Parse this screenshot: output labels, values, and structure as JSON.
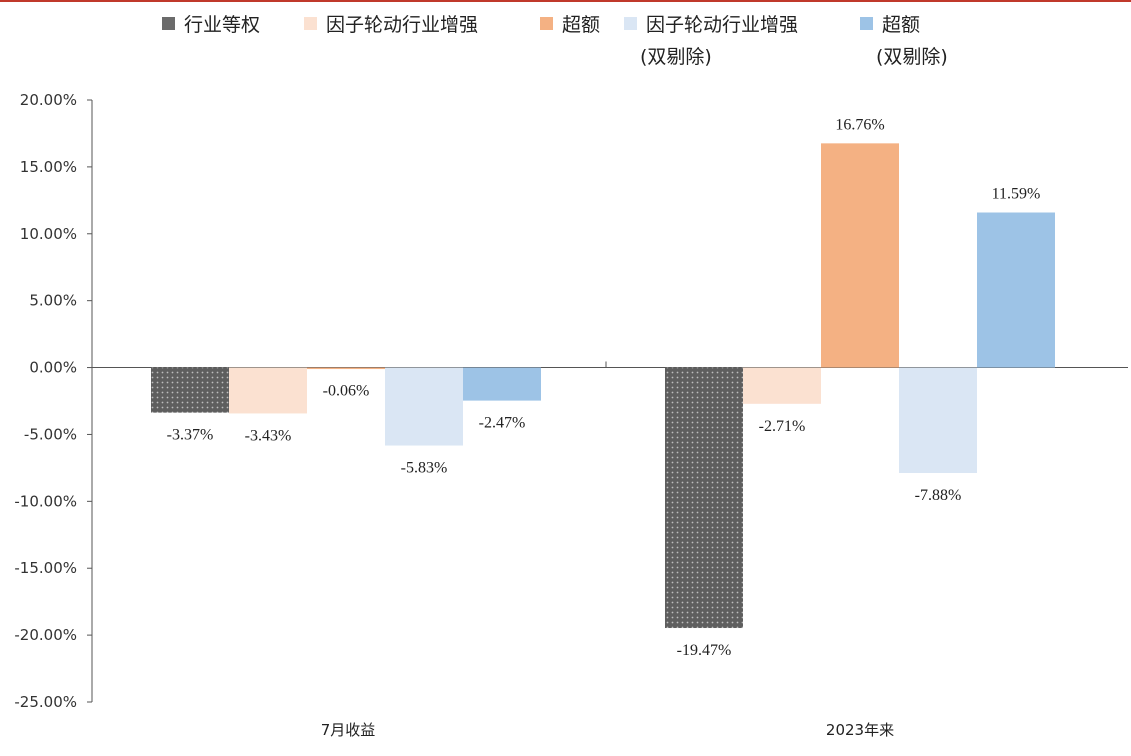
{
  "colors": {
    "industry_equal": "#6b6b6b",
    "rotation_enhanced": "#fbe1d1",
    "excess": "#f4b183",
    "rotation_enhanced_double": "#dae6f4",
    "excess_double": "#9dc3e6",
    "axis": "#555555",
    "frame": "#c0392b"
  },
  "chart_data": {
    "type": "bar",
    "categories": [
      "7月收益",
      "2023年来"
    ],
    "ylim": [
      -25,
      20
    ],
    "ytick_step": 5,
    "ytick_format": "percent_2dp",
    "legend_position": "top",
    "grid": false,
    "series": [
      {
        "name": "行业等权",
        "color_key": "industry_equal",
        "pattern": "dotted",
        "values": [
          -3.37,
          -19.47
        ]
      },
      {
        "name": "因子轮动行业增强",
        "color_key": "rotation_enhanced",
        "values": [
          -3.43,
          -2.71
        ]
      },
      {
        "name": "超额",
        "color_key": "excess",
        "values": [
          -0.06,
          16.76
        ]
      },
      {
        "name": "因子轮动行业增强",
        "name_line2": "(双剔除)",
        "color_key": "rotation_enhanced_double",
        "values": [
          -5.83,
          -7.88
        ]
      },
      {
        "name": "超额",
        "name_line2": "(双剔除)",
        "color_key": "excess_double",
        "values": [
          -2.47,
          11.59
        ]
      }
    ]
  }
}
